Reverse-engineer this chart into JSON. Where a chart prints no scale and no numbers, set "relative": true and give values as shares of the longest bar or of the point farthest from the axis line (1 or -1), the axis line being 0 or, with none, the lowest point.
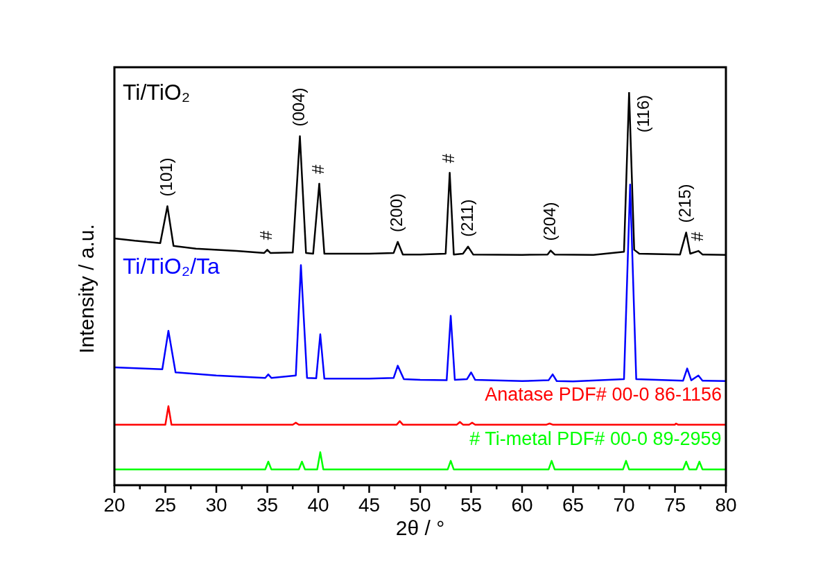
{
  "chart_data": {
    "type": "line",
    "relative": true,
    "xlabel": "2θ / °",
    "ylabel": "Intensity / a.u.",
    "xlim": [
      20,
      80
    ],
    "xticks": [
      20,
      {
        "value": 22.5,
        "label": null
      },
      25,
      {
        "value": 27.5,
        "label": null
      },
      30,
      {
        "value": 32.5,
        "label": null
      },
      35,
      {
        "value": 37.5,
        "label": null
      },
      40,
      {
        "value": 42.5,
        "label": null
      },
      45,
      {
        "value": 47.5,
        "label": null
      },
      50,
      {
        "value": 52.5,
        "label": null
      },
      55,
      {
        "value": 57.5,
        "label": null
      },
      60,
      {
        "value": 62.5,
        "label": null
      },
      65,
      {
        "value": 67.5,
        "label": null
      },
      70,
      {
        "value": 72.5,
        "label": null
      },
      75,
      {
        "value": 77.5,
        "label": null
      },
      80
    ],
    "legend": false,
    "grid": false,
    "marker": "none",
    "series": [
      {
        "name": "Ti/TiO₂",
        "color": "#000000",
        "x": [
          20,
          22,
          24.5,
          25.2,
          25.8,
          28,
          32,
          34.7,
          35,
          35.3,
          37.5,
          38.2,
          38.8,
          39.5,
          40.1,
          40.6,
          45,
          47.4,
          47.8,
          48.3,
          50,
          52.5,
          52.9,
          53.3,
          54.2,
          54.7,
          55.2,
          60,
          62.5,
          62.8,
          63.2,
          67,
          70,
          70.5,
          71,
          71.5,
          75.5,
          76.1,
          76.5,
          77.3,
          77.7,
          80
        ],
        "values": [
          0.628,
          0.622,
          0.616,
          0.71,
          0.609,
          0.602,
          0.596,
          0.591,
          0.599,
          0.591,
          0.592,
          0.888,
          0.591,
          0.589,
          0.767,
          0.589,
          0.589,
          0.591,
          0.619,
          0.587,
          0.587,
          0.589,
          0.795,
          0.587,
          0.589,
          0.607,
          0.587,
          0.586,
          0.587,
          0.597,
          0.587,
          0.586,
          0.594,
          1,
          0.599,
          0.589,
          0.587,
          0.643,
          0.589,
          0.596,
          0.587,
          0.586
        ]
      },
      {
        "name": "Ti/TiO₂/Ta",
        "color": "#0000ff",
        "x": [
          20,
          24.7,
          25.3,
          26,
          30,
          34.8,
          35.1,
          35.4,
          37.8,
          38.3,
          38.9,
          39.8,
          40.2,
          40.6,
          45,
          47.4,
          47.8,
          48.4,
          50,
          52.6,
          53,
          53.4,
          54.6,
          55,
          55.4,
          60,
          62.6,
          63,
          63.4,
          65,
          70,
          70.6,
          71.2,
          75.8,
          76.2,
          76.6,
          77.3,
          77.7,
          80
        ],
        "values": [
          0.3,
          0.295,
          0.393,
          0.287,
          0.279,
          0.273,
          0.282,
          0.273,
          0.279,
          0.56,
          0.273,
          0.272,
          0.384,
          0.271,
          0.271,
          0.273,
          0.304,
          0.27,
          0.268,
          0.267,
          0.431,
          0.268,
          0.27,
          0.287,
          0.268,
          0.265,
          0.267,
          0.282,
          0.265,
          0.264,
          0.27,
          0.765,
          0.27,
          0.266,
          0.297,
          0.267,
          0.279,
          0.266,
          0.265
        ]
      },
      {
        "name": "Anatase PDF# 00-0 86-1156",
        "color": "#ff0000",
        "x": [
          20,
          25.0,
          25.3,
          25.6,
          37.5,
          37.8,
          38.1,
          47.7,
          48,
          48.3,
          53.6,
          53.9,
          54.2,
          54.8,
          55.1,
          55.4,
          62.4,
          62.7,
          63,
          75,
          75.1,
          75.3,
          80
        ],
        "values": [
          0.154,
          0.154,
          0.201,
          0.154,
          0.154,
          0.159,
          0.154,
          0.154,
          0.163,
          0.154,
          0.154,
          0.161,
          0.154,
          0.154,
          0.159,
          0.154,
          0.154,
          0.157,
          0.154,
          0.154,
          0.157,
          0.154,
          0.154
        ]
      },
      {
        "name": "# Ti-metal PDF# 00-0 89-2959",
        "color": "#00ff00",
        "x": [
          20,
          34.8,
          35.1,
          35.4,
          38.1,
          38.4,
          38.7,
          39.9,
          40.2,
          40.5,
          52.7,
          53,
          53.3,
          62.6,
          62.9,
          63.2,
          69.9,
          70.2,
          70.5,
          75.8,
          76.1,
          76.4,
          77.1,
          77.4,
          77.7,
          80
        ],
        "values": [
          0.04,
          0.04,
          0.06,
          0.04,
          0.04,
          0.06,
          0.04,
          0.04,
          0.084,
          0.04,
          0.04,
          0.062,
          0.04,
          0.04,
          0.062,
          0.04,
          0.04,
          0.062,
          0.04,
          0.04,
          0.06,
          0.04,
          0.04,
          0.06,
          0.04,
          0.04
        ]
      }
    ],
    "annotations": [
      {
        "text": "(101)",
        "x": 25.2,
        "y": 0.71
      },
      {
        "text": "#",
        "x": 35,
        "y": 0.599
      },
      {
        "text": "(004)",
        "x": 38.2,
        "y": 0.888
      },
      {
        "text": "#",
        "x": 40.1,
        "y": 0.767
      },
      {
        "text": "(200)",
        "x": 47.8,
        "y": 0.619
      },
      {
        "text": "#",
        "x": 52.9,
        "y": 0.795
      },
      {
        "text": "(211)",
        "x": 54.7,
        "y": 0.607
      },
      {
        "text": "(204)",
        "x": 62.8,
        "y": 0.597
      },
      {
        "text": "(116)",
        "x": 70.5,
        "y": 1
      },
      {
        "text": "(215)",
        "x": 76.1,
        "y": 0.643
      },
      {
        "text": "#",
        "x": 77.3,
        "y": 0.596
      }
    ]
  }
}
